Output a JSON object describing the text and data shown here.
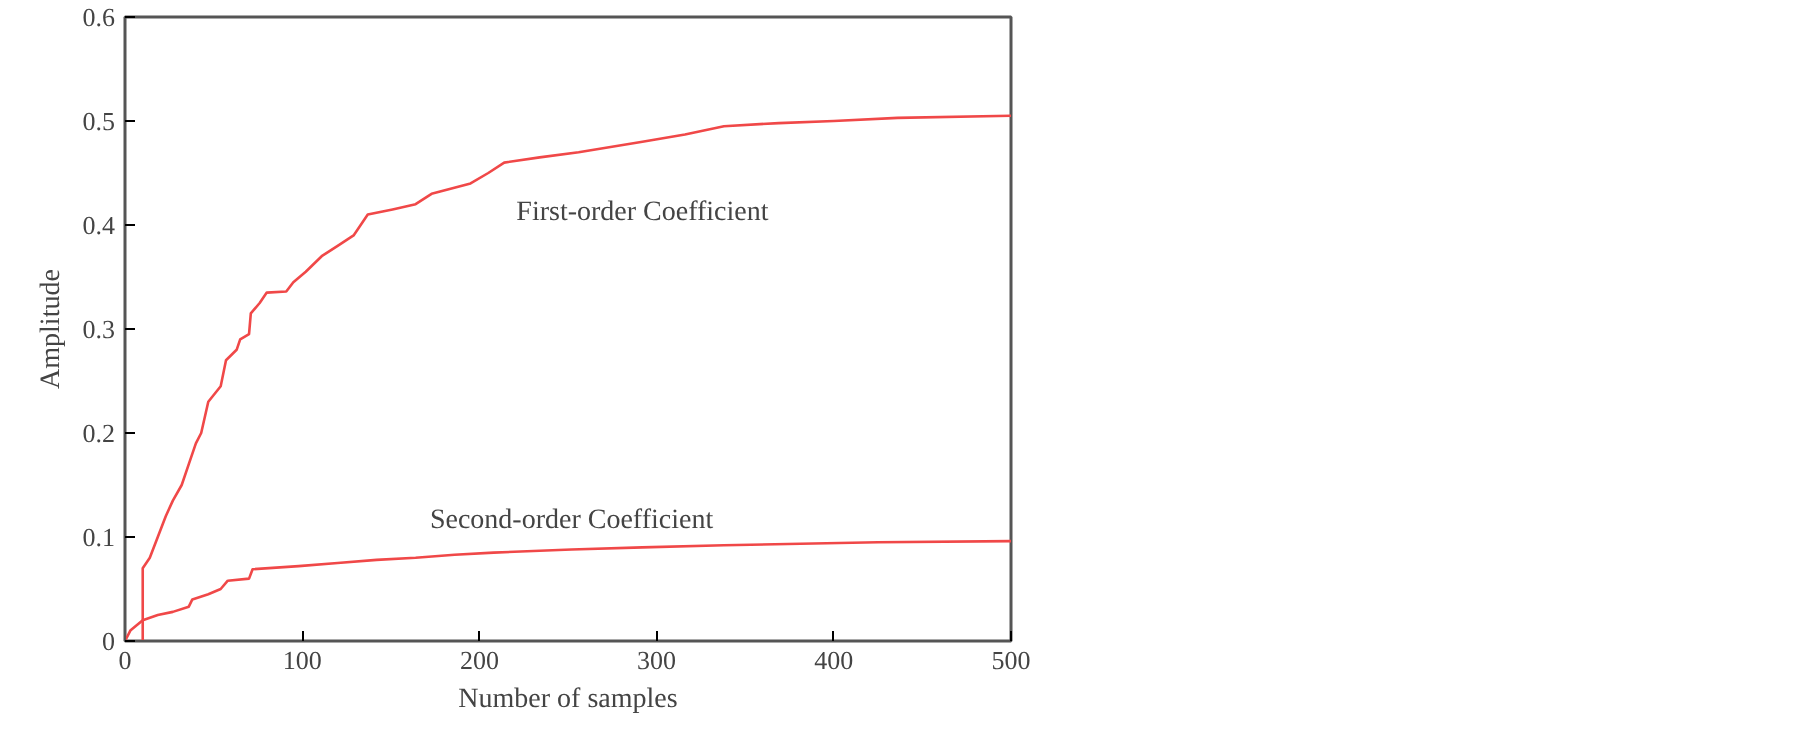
{
  "chart_data": {
    "type": "line",
    "xlabel": "Number of samples",
    "ylabel": "Amplitude",
    "xlim": [
      0,
      500
    ],
    "ylim": [
      0,
      0.6
    ],
    "xticks": [
      0,
      100,
      200,
      300,
      400,
      500
    ],
    "yticks": [
      0,
      0.1,
      0.2,
      0.3,
      0.4,
      0.5,
      0.6
    ],
    "grid": false,
    "series": [
      {
        "name": "First-order Coefficient",
        "color": "#f04848",
        "x": [
          10,
          10,
          14,
          18.5,
          23,
          27,
          32,
          36,
          40,
          43,
          47,
          54,
          57,
          63,
          65,
          70,
          71,
          76,
          80,
          91,
          95,
          102,
          111,
          120,
          129,
          137,
          151,
          164,
          173,
          195,
          205,
          214,
          234,
          256,
          292,
          316,
          338,
          369,
          400,
          436,
          500
        ],
        "values": [
          0,
          0.07,
          0.08,
          0.1,
          0.12,
          0.135,
          0.15,
          0.17,
          0.19,
          0.2,
          0.23,
          0.245,
          0.27,
          0.28,
          0.29,
          0.295,
          0.315,
          0.325,
          0.335,
          0.336,
          0.345,
          0.355,
          0.37,
          0.38,
          0.39,
          0.41,
          0.415,
          0.42,
          0.43,
          0.44,
          0.45,
          0.46,
          0.465,
          0.47,
          0.48,
          0.487,
          0.495,
          0.498,
          0.5,
          0.503,
          0.505
        ]
      },
      {
        "name": "Second-order Coefficient",
        "color": "#f04848",
        "x": [
          0,
          3,
          10,
          18.5,
          27,
          36,
          38,
          47,
          54,
          58,
          70,
          72,
          98,
          120,
          142,
          164,
          186,
          208,
          252,
          292,
          338,
          425,
          500
        ],
        "values": [
          0,
          0.01,
          0.02,
          0.025,
          0.028,
          0.033,
          0.04,
          0.045,
          0.05,
          0.058,
          0.06,
          0.069,
          0.072,
          0.075,
          0.078,
          0.08,
          0.083,
          0.085,
          0.088,
          0.09,
          0.092,
          0.095,
          0.096
        ]
      }
    ]
  }
}
